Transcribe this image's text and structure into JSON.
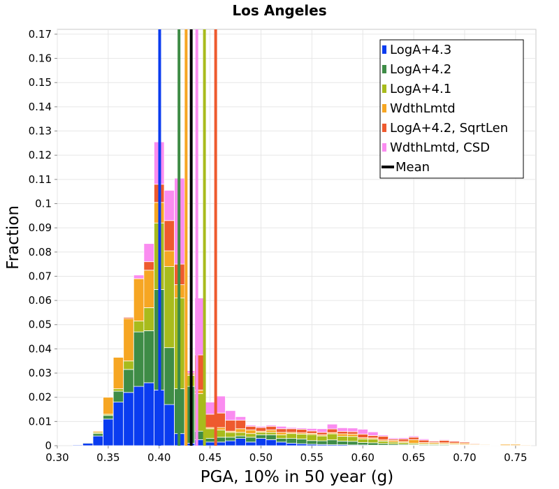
{
  "chart_data": {
    "type": "bar",
    "stacked": true,
    "title": "Los Angeles",
    "xlabel": "PGA, 10% in 50 year (g)",
    "ylabel": "Fraction",
    "xlim": [
      0.3,
      0.77
    ],
    "ylim": [
      0,
      0.172
    ],
    "grid": true,
    "legend_position": "top-right",
    "bin_width": 0.01,
    "x": [
      0.32,
      0.33,
      0.34,
      0.35,
      0.36,
      0.37,
      0.38,
      0.39,
      0.4,
      0.41,
      0.42,
      0.43,
      0.44,
      0.45,
      0.46,
      0.47,
      0.48,
      0.49,
      0.5,
      0.51,
      0.52,
      0.53,
      0.54,
      0.55,
      0.56,
      0.57,
      0.58,
      0.59,
      0.6,
      0.61,
      0.62,
      0.63,
      0.64,
      0.65,
      0.66,
      0.67,
      0.68,
      0.69,
      0.7,
      0.71,
      0.72,
      0.73,
      0.74,
      0.75,
      0.76
    ],
    "series": [
      {
        "name": "LogA+4.3",
        "color": "#0a3cf0",
        "values": [
          0.0003,
          0.001,
          0.004,
          0.011,
          0.018,
          0.022,
          0.0245,
          0.026,
          0.023,
          0.017,
          0.005,
          0.001,
          0.0025,
          0.0015,
          0.0015,
          0.002,
          0.003,
          0.0015,
          0.003,
          0.0025,
          0.0015,
          0.001,
          0.0008,
          0.0006,
          0.0005,
          0.0004,
          0.0004,
          0.0003,
          0.0003,
          0.0002,
          0.0002,
          0.0002,
          0.0002,
          0.0002,
          0.0001,
          0.0001,
          0.0001,
          0.0001,
          0.0001,
          0.0001,
          0.0001,
          0,
          0,
          0,
          0
        ]
      },
      {
        "name": "LogA+4.2",
        "color": "#3e8c46",
        "values": [
          0,
          0.0003,
          0.001,
          0.0015,
          0.0045,
          0.0095,
          0.0225,
          0.0215,
          0.0415,
          0.0235,
          0.0185,
          0.0235,
          0.0035,
          0.0015,
          0.002,
          0.0015,
          0.001,
          0.002,
          0.0015,
          0.002,
          0.0015,
          0.002,
          0.002,
          0.0015,
          0.0015,
          0.002,
          0.0015,
          0.0015,
          0.001,
          0.001,
          0.0007,
          0.0005,
          0.0004,
          0.0003,
          0.0003,
          0.0003,
          0.0003,
          0.0002,
          0.0002,
          0.0001,
          0.0001,
          0,
          0,
          0,
          0
        ]
      },
      {
        "name": "LogA+4.1",
        "color": "#a8bb1c",
        "values": [
          0,
          0,
          0.0005,
          0.0005,
          0.001,
          0.0035,
          0.0045,
          0.0095,
          0.0275,
          0.0335,
          0.0375,
          0.0045,
          0.0155,
          0.004,
          0.003,
          0.002,
          0.0015,
          0.0015,
          0.001,
          0.001,
          0.0015,
          0.002,
          0.002,
          0.0025,
          0.002,
          0.0025,
          0.002,
          0.002,
          0.0015,
          0.0015,
          0.001,
          0.0008,
          0.0007,
          0.0005,
          0.0004,
          0.0004,
          0.0003,
          0.0003,
          0.0002,
          0.0002,
          0.0001,
          0.0001,
          0.0001,
          0.0001,
          0
        ]
      },
      {
        "name": "WdthLmtd",
        "color": "#f6a623",
        "values": [
          0,
          0.0002,
          0.0005,
          0.007,
          0.013,
          0.0175,
          0.0175,
          0.0155,
          0.0085,
          0.0065,
          0.0055,
          0.0005,
          0.0015,
          0.0005,
          0.001,
          0.0005,
          0.0015,
          0.0015,
          0.0005,
          0.001,
          0.001,
          0.0005,
          0.0005,
          0.0005,
          0.0005,
          0.0005,
          0.001,
          0.001,
          0.0005,
          0.0005,
          0.0005,
          0.0007,
          0.0005,
          0.0015,
          0.0005,
          0.0005,
          0.0005,
          0.0005,
          0.0005,
          0.0003,
          0.0003,
          0.0002,
          0.0005,
          0.0005,
          0.0003
        ]
      },
      {
        "name": "LogA+4.2, SqrtLen",
        "color": "#ee5a2e",
        "values": [
          0,
          0,
          0,
          0,
          0,
          0.0005,
          0,
          0.0035,
          0.0075,
          0.0125,
          0.0085,
          0.0005,
          0.0145,
          0.0055,
          0.006,
          0.0045,
          0.0035,
          0.0015,
          0.0015,
          0.0015,
          0.0015,
          0.0015,
          0.0015,
          0.001,
          0.001,
          0.0015,
          0.001,
          0.001,
          0.0015,
          0.001,
          0.0015,
          0.0005,
          0.001,
          0.001,
          0.001,
          0.0005,
          0.001,
          0.0007,
          0.0005,
          0.0003,
          0.0002,
          0.0001,
          0.0001,
          0.0001,
          0.0001
        ]
      },
      {
        "name": "WdthLmtd, CSD",
        "color": "#fa8cf0",
        "values": [
          0,
          0,
          0,
          0,
          0,
          0,
          0.0015,
          0.0075,
          0.0175,
          0.0125,
          0.0355,
          0.001,
          0.0235,
          0.005,
          0.007,
          0.004,
          0.0015,
          0.0005,
          0.0005,
          0.0005,
          0.001,
          0.0005,
          0.0005,
          0.001,
          0.0015,
          0.002,
          0.0015,
          0.0015,
          0.002,
          0.0015,
          0.0005,
          0.0005,
          0.0005,
          0.0005,
          0.0005,
          0.0003,
          0.0003,
          0.0003,
          0.0002,
          0.0002,
          0.0001,
          0.0001,
          0.0001,
          0.0001,
          0
        ]
      }
    ],
    "mean_lines": [
      {
        "series": "LogA+4.3",
        "x": 0.4005,
        "color": "#0a3cf0"
      },
      {
        "series": "LogA+4.2",
        "x": 0.4195,
        "color": "#3e8c46"
      },
      {
        "series": "WdthLmtd",
        "x": 0.4265,
        "color": "#f6a623"
      },
      {
        "series": "WdthLmtd, CSD",
        "x": 0.437,
        "color": "#fa8cf0"
      },
      {
        "series": "LogA+4.1",
        "x": 0.4445,
        "color": "#a8bb1c"
      },
      {
        "series": "LogA+4.2, SqrtLen",
        "x": 0.4555,
        "color": "#ee5a2e"
      },
      {
        "series": "Mean",
        "x": 0.4315,
        "color": "#000000"
      }
    ],
    "legend": [
      {
        "label": "LogA+4.3",
        "color": "#0a3cf0"
      },
      {
        "label": "LogA+4.2",
        "color": "#3e8c46"
      },
      {
        "label": "LogA+4.1",
        "color": "#a8bb1c"
      },
      {
        "label": "WdthLmtd",
        "color": "#f6a623"
      },
      {
        "label": "LogA+4.2, SqrtLen",
        "color": "#ee5a2e"
      },
      {
        "label": "WdthLmtd, CSD",
        "color": "#fa8cf0"
      },
      {
        "label": "Mean",
        "color": "#000000",
        "line": true
      }
    ],
    "xticks": [
      0.3,
      0.35,
      0.4,
      0.45,
      0.5,
      0.55,
      0.6,
      0.65,
      0.7,
      0.75
    ],
    "xtick_labels": [
      "0.30",
      "0.35",
      "0.40",
      "0.45",
      "0.50",
      "0.55",
      "0.60",
      "0.65",
      "0.70",
      "0.75"
    ],
    "yticks": [
      0,
      0.01,
      0.02,
      0.03,
      0.04,
      0.05,
      0.06,
      0.07,
      0.08,
      0.09,
      0.1,
      0.11,
      0.12,
      0.13,
      0.14,
      0.15,
      0.16,
      0.17
    ],
    "ytick_labels": [
      "0",
      "0.01",
      "0.02",
      "0.03",
      "0.04",
      "0.05",
      "0.06",
      "0.07",
      "0.08",
      "0.09",
      "0.1",
      "0.11",
      "0.12",
      "0.13",
      "0.14",
      "0.15",
      "0.16",
      "0.17"
    ]
  }
}
